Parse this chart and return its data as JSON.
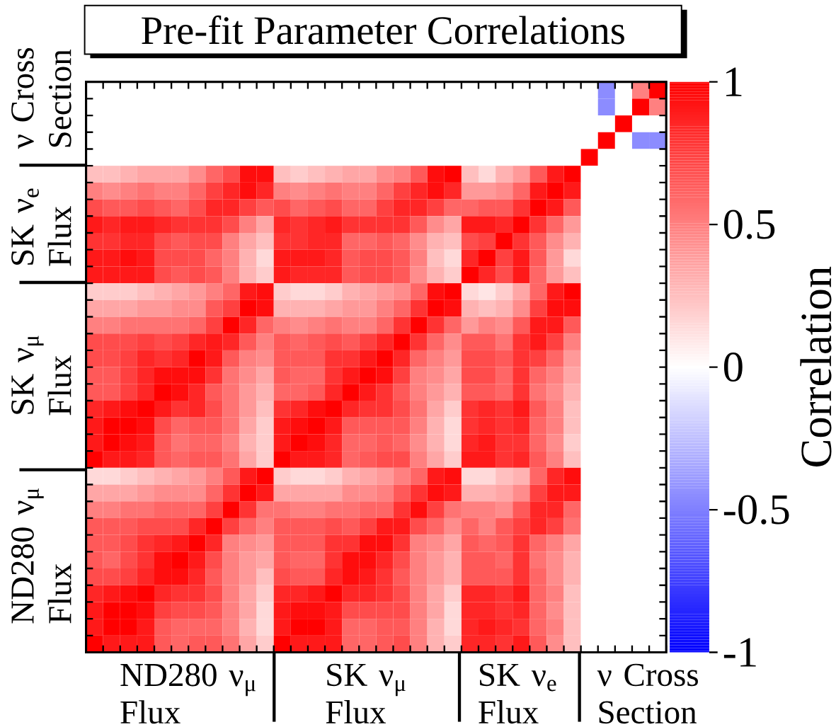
{
  "chart_data": {
    "type": "heatmap",
    "title": "Pre-fit Parameter Correlations",
    "clabel": "Correlation",
    "categories": [
      null,
      null,
      null,
      null,
      null,
      null,
      null,
      null,
      null,
      null,
      null,
      null,
      null,
      null,
      null,
      null,
      null,
      null,
      null,
      null,
      null,
      null,
      null,
      null,
      null,
      null,
      null,
      null,
      null,
      null,
      null,
      null,
      null,
      null
    ],
    "y_categories": [
      null,
      null,
      null,
      null,
      null,
      null,
      null,
      null,
      null,
      null,
      null,
      null,
      null,
      null,
      null,
      null,
      null,
      null,
      null,
      null,
      null,
      null,
      null,
      null,
      null,
      null,
      null,
      null,
      null,
      null,
      null,
      null,
      null,
      null
    ],
    "annotations": [
      "ND280 ν$_{μ}$ Flux",
      "SK ν$_{μ}$ Flux",
      "SK ν$_{e}$ Flux",
      "ν Cross Section",
      "ν Cross Section",
      "SK ν$_{e}$ Flux",
      "SK ν$_{μ}$ Flux",
      "ND280 ν$_{μ}$ Flux"
    ],
    "clim": [
      -1,
      1
    ],
    "cticks": [
      -1,
      -0.5,
      0,
      0.5,
      1
    ],
    "cells": [
      [
        0,
        0,
        0,
        0,
        0,
        0,
        0,
        0,
        0,
        0,
        0,
        0,
        0,
        0,
        0,
        0,
        0,
        0,
        0,
        0,
        0,
        0,
        0,
        0,
        0,
        0,
        0,
        0,
        0,
        0,
        -0.45,
        0,
        0.5,
        1
      ],
      [
        0,
        0,
        0,
        0,
        0,
        0,
        0,
        0,
        0,
        0,
        0,
        0,
        0,
        0,
        0,
        0,
        0,
        0,
        0,
        0,
        0,
        0,
        0,
        0,
        0,
        0,
        0,
        0,
        0,
        0,
        -0.45,
        0,
        1,
        0.5
      ],
      [
        0,
        0,
        0,
        0,
        0,
        0,
        0,
        0,
        0,
        0,
        0,
        0,
        0,
        0,
        0,
        0,
        0,
        0,
        0,
        0,
        0,
        0,
        0,
        0,
        0,
        0,
        0,
        0,
        0,
        0,
        0,
        1,
        0,
        0
      ],
      [
        0,
        0,
        0,
        0,
        0,
        0,
        0,
        0,
        0,
        0,
        0,
        0,
        0,
        0,
        0,
        0,
        0,
        0,
        0,
        0,
        0,
        0,
        0,
        0,
        0,
        0,
        0,
        0,
        0,
        0,
        1,
        0,
        -0.45,
        -0.45
      ],
      [
        0,
        0,
        0,
        0,
        0,
        0,
        0,
        0,
        0,
        0,
        0,
        0,
        0,
        0,
        0,
        0,
        0,
        0,
        0,
        0,
        0,
        0,
        0,
        0,
        0,
        0,
        0,
        0,
        0,
        1,
        0,
        0,
        0,
        0
      ],
      [
        0.25,
        0.25,
        0.3,
        0.35,
        0.35,
        0.35,
        0.45,
        0.6,
        0.7,
        0.95,
        0.95,
        0.25,
        0.2,
        0.25,
        0.3,
        0.35,
        0.35,
        0.45,
        0.5,
        0.65,
        0.95,
        1,
        0.25,
        0.15,
        0.3,
        0.4,
        0.65,
        0.9,
        1,
        0,
        0,
        0,
        0,
        0
      ],
      [
        0.5,
        0.45,
        0.5,
        0.55,
        0.5,
        0.5,
        0.6,
        0.75,
        0.85,
        0.95,
        0.85,
        0.5,
        0.45,
        0.5,
        0.55,
        0.5,
        0.5,
        0.6,
        0.75,
        0.85,
        0.95,
        0.85,
        0.4,
        0.4,
        0.45,
        0.6,
        0.9,
        1,
        0.9,
        0,
        0,
        0,
        0,
        0
      ],
      [
        0.7,
        0.65,
        0.65,
        0.7,
        0.65,
        0.6,
        0.7,
        0.85,
        0.85,
        0.75,
        0.65,
        0.7,
        0.6,
        0.65,
        0.7,
        0.6,
        0.6,
        0.75,
        0.85,
        0.85,
        0.75,
        0.6,
        0.6,
        0.65,
        0.65,
        0.8,
        1,
        0.9,
        0.65,
        0,
        0,
        0,
        0,
        0
      ],
      [
        0.9,
        0.85,
        0.9,
        0.9,
        0.85,
        0.8,
        0.8,
        0.8,
        0.7,
        0.5,
        0.35,
        0.85,
        0.8,
        0.85,
        0.9,
        0.8,
        0.8,
        0.8,
        0.8,
        0.65,
        0.45,
        0.35,
        0.9,
        0.9,
        0.85,
        1,
        0.8,
        0.6,
        0.4,
        0,
        0,
        0,
        0,
        0
      ],
      [
        0.8,
        0.8,
        0.85,
        0.85,
        0.7,
        0.65,
        0.7,
        0.7,
        0.5,
        0.35,
        0.25,
        0.8,
        0.8,
        0.85,
        0.85,
        0.6,
        0.6,
        0.65,
        0.6,
        0.45,
        0.3,
        0.25,
        0.7,
        0.75,
        1,
        0.8,
        0.65,
        0.45,
        0.3,
        0,
        0,
        0,
        0,
        0
      ],
      [
        0.9,
        0.9,
        0.95,
        0.9,
        0.7,
        0.7,
        0.7,
        0.6,
        0.5,
        0.3,
        0.15,
        0.9,
        0.9,
        0.9,
        0.85,
        0.65,
        0.7,
        0.7,
        0.65,
        0.5,
        0.25,
        0.15,
        0.85,
        1,
        0.75,
        0.9,
        0.65,
        0.4,
        0.15,
        0,
        0,
        0,
        0,
        0
      ],
      [
        0.9,
        0.9,
        0.9,
        0.9,
        0.7,
        0.65,
        0.7,
        0.65,
        0.5,
        0.3,
        0.2,
        0.9,
        0.85,
        0.85,
        0.85,
        0.65,
        0.7,
        0.7,
        0.65,
        0.45,
        0.3,
        0.2,
        1,
        0.85,
        0.7,
        0.9,
        0.6,
        0.4,
        0.25,
        0,
        0,
        0,
        0,
        0
      ],
      [
        0.2,
        0.2,
        0.2,
        0.25,
        0.3,
        0.35,
        0.4,
        0.5,
        0.6,
        0.9,
        0.95,
        0.2,
        0.15,
        0.15,
        0.2,
        0.3,
        0.35,
        0.4,
        0.45,
        0.6,
        0.95,
        1,
        0.15,
        0.1,
        0.2,
        0.35,
        0.6,
        0.9,
        1,
        0,
        0,
        0,
        0,
        0
      ],
      [
        0.35,
        0.35,
        0.35,
        0.4,
        0.4,
        0.45,
        0.45,
        0.65,
        0.75,
        1,
        0.95,
        0.3,
        0.3,
        0.3,
        0.35,
        0.4,
        0.4,
        0.5,
        0.6,
        0.8,
        1,
        0.95,
        0.3,
        0.25,
        0.3,
        0.45,
        0.75,
        0.95,
        0.95,
        0,
        0,
        0,
        0,
        0
      ],
      [
        0.5,
        0.5,
        0.55,
        0.55,
        0.55,
        0.55,
        0.6,
        0.75,
        1,
        0.85,
        0.6,
        0.5,
        0.45,
        0.5,
        0.55,
        0.5,
        0.5,
        0.6,
        0.8,
        1,
        0.8,
        0.6,
        0.4,
        0.5,
        0.45,
        0.65,
        0.9,
        0.9,
        0.65,
        0,
        0,
        0,
        0,
        0
      ],
      [
        0.7,
        0.7,
        0.7,
        0.75,
        0.7,
        0.75,
        0.85,
        0.9,
        0.85,
        0.65,
        0.5,
        0.65,
        0.6,
        0.65,
        0.7,
        0.65,
        0.75,
        0.85,
        1,
        0.8,
        0.6,
        0.45,
        0.65,
        0.65,
        0.55,
        0.8,
        0.9,
        0.75,
        0.5,
        0,
        0,
        0,
        0,
        0
      ],
      [
        0.7,
        0.7,
        0.75,
        0.85,
        0.8,
        0.85,
        1,
        0.9,
        0.65,
        0.5,
        0.45,
        0.65,
        0.65,
        0.65,
        0.8,
        0.8,
        0.9,
        1,
        0.85,
        0.6,
        0.5,
        0.4,
        0.7,
        0.7,
        0.65,
        0.8,
        0.75,
        0.6,
        0.4,
        0,
        0,
        0,
        0,
        0
      ],
      [
        0.65,
        0.65,
        0.75,
        0.85,
        0.95,
        0.95,
        0.95,
        0.8,
        0.55,
        0.45,
        0.35,
        0.65,
        0.6,
        0.6,
        0.8,
        0.9,
        1,
        0.95,
        0.75,
        0.5,
        0.45,
        0.35,
        0.7,
        0.7,
        0.6,
        0.8,
        0.6,
        0.5,
        0.35,
        0,
        0,
        0,
        0,
        0
      ],
      [
        0.65,
        0.65,
        0.75,
        0.85,
        1,
        0.95,
        0.85,
        0.65,
        0.55,
        0.4,
        0.3,
        0.6,
        0.6,
        0.65,
        0.85,
        1,
        0.9,
        0.8,
        0.65,
        0.5,
        0.4,
        0.3,
        0.65,
        0.65,
        0.6,
        0.8,
        0.55,
        0.45,
        0.3,
        0,
        0,
        0,
        0,
        0
      ],
      [
        0.85,
        0.9,
        0.95,
        1,
        0.9,
        0.8,
        0.85,
        0.7,
        0.55,
        0.4,
        0.25,
        0.8,
        0.85,
        0.95,
        1,
        0.85,
        0.8,
        0.8,
        0.7,
        0.55,
        0.35,
        0.2,
        0.8,
        0.85,
        0.8,
        0.9,
        0.65,
        0.5,
        0.25,
        0,
        0,
        0,
        0,
        0
      ],
      [
        0.9,
        1,
        1,
        0.95,
        0.7,
        0.6,
        0.65,
        0.65,
        0.55,
        0.35,
        0.2,
        0.9,
        0.95,
        1,
        0.9,
        0.65,
        0.65,
        0.65,
        0.65,
        0.5,
        0.3,
        0.15,
        0.8,
        0.85,
        0.8,
        0.85,
        0.6,
        0.5,
        0.25,
        0,
        0,
        0,
        0,
        0
      ],
      [
        0.9,
        1,
        0.95,
        0.9,
        0.65,
        0.55,
        0.6,
        0.6,
        0.5,
        0.3,
        0.2,
        0.9,
        1,
        0.95,
        0.85,
        0.6,
        0.6,
        0.65,
        0.6,
        0.45,
        0.3,
        0.15,
        0.85,
        0.9,
        0.8,
        0.8,
        0.6,
        0.45,
        0.2,
        0,
        0,
        0,
        0,
        0
      ],
      [
        1,
        0.9,
        0.9,
        0.85,
        0.65,
        0.6,
        0.65,
        0.65,
        0.55,
        0.35,
        0.2,
        1,
        0.9,
        0.9,
        0.85,
        0.6,
        0.65,
        0.7,
        0.7,
        0.5,
        0.35,
        0.2,
        0.9,
        0.9,
        0.8,
        0.85,
        0.65,
        0.5,
        0.25,
        0,
        0,
        0,
        0,
        0
      ],
      [
        0.15,
        0.15,
        0.2,
        0.25,
        0.3,
        0.35,
        0.4,
        0.5,
        0.65,
        0.9,
        1,
        0.2,
        0.15,
        0.15,
        0.2,
        0.3,
        0.35,
        0.4,
        0.5,
        0.6,
        0.9,
        0.95,
        0.15,
        0.15,
        0.25,
        0.3,
        0.6,
        0.85,
        0.95,
        0,
        0,
        0,
        0,
        0
      ],
      [
        0.35,
        0.35,
        0.35,
        0.4,
        0.45,
        0.45,
        0.45,
        0.6,
        0.8,
        1,
        0.9,
        0.35,
        0.35,
        0.35,
        0.35,
        0.45,
        0.45,
        0.5,
        0.65,
        0.8,
        0.95,
        0.9,
        0.3,
        0.3,
        0.35,
        0.45,
        0.75,
        0.9,
        0.9,
        0,
        0,
        0,
        0,
        0
      ],
      [
        0.5,
        0.5,
        0.55,
        0.55,
        0.6,
        0.6,
        0.6,
        0.75,
        1,
        0.8,
        0.55,
        0.55,
        0.5,
        0.5,
        0.55,
        0.55,
        0.6,
        0.6,
        0.8,
        0.95,
        0.75,
        0.55,
        0.5,
        0.5,
        0.45,
        0.65,
        0.85,
        0.85,
        0.6,
        0,
        0,
        0,
        0,
        0
      ],
      [
        0.65,
        0.65,
        0.65,
        0.7,
        0.7,
        0.7,
        0.85,
        1,
        0.75,
        0.6,
        0.5,
        0.65,
        0.65,
        0.65,
        0.7,
        0.65,
        0.75,
        0.9,
        0.9,
        0.7,
        0.6,
        0.45,
        0.6,
        0.5,
        0.65,
        0.75,
        0.85,
        0.75,
        0.55,
        0,
        0,
        0,
        0,
        0
      ],
      [
        0.65,
        0.65,
        0.7,
        0.8,
        0.85,
        0.9,
        1,
        0.85,
        0.5,
        0.45,
        0.4,
        0.65,
        0.65,
        0.65,
        0.8,
        0.8,
        0.95,
        0.95,
        0.8,
        0.5,
        0.45,
        0.35,
        0.65,
        0.6,
        0.65,
        0.8,
        0.6,
        0.5,
        0.35,
        0,
        0,
        0,
        0,
        0
      ],
      [
        0.65,
        0.6,
        0.7,
        0.8,
        0.95,
        1,
        0.9,
        0.7,
        0.5,
        0.4,
        0.35,
        0.65,
        0.6,
        0.6,
        0.8,
        0.95,
        0.95,
        0.85,
        0.7,
        0.5,
        0.4,
        0.3,
        0.65,
        0.65,
        0.6,
        0.8,
        0.55,
        0.45,
        0.3,
        0,
        0,
        0,
        0,
        0
      ],
      [
        0.7,
        0.7,
        0.75,
        0.85,
        0.95,
        0.95,
        0.85,
        0.65,
        0.5,
        0.4,
        0.25,
        0.7,
        0.65,
        0.65,
        0.85,
        0.95,
        0.9,
        0.8,
        0.65,
        0.5,
        0.4,
        0.3,
        0.65,
        0.65,
        0.65,
        0.8,
        0.6,
        0.45,
        0.3,
        0,
        0,
        0,
        0,
        0
      ],
      [
        0.85,
        0.9,
        0.95,
        1,
        0.85,
        0.8,
        0.8,
        0.7,
        0.5,
        0.35,
        0.2,
        0.85,
        0.85,
        0.9,
        1,
        0.85,
        0.85,
        0.8,
        0.7,
        0.5,
        0.35,
        0.2,
        0.85,
        0.85,
        0.8,
        0.9,
        0.6,
        0.5,
        0.25,
        0,
        0,
        0,
        0,
        0
      ],
      [
        0.9,
        1,
        1,
        0.95,
        0.75,
        0.7,
        0.7,
        0.65,
        0.5,
        0.35,
        0.15,
        0.9,
        0.95,
        0.95,
        0.9,
        0.7,
        0.7,
        0.7,
        0.7,
        0.5,
        0.35,
        0.15,
        0.85,
        0.85,
        0.8,
        0.85,
        0.6,
        0.45,
        0.25,
        0,
        0,
        0,
        0,
        0
      ],
      [
        0.9,
        1,
        1,
        0.9,
        0.65,
        0.6,
        0.6,
        0.6,
        0.5,
        0.3,
        0.15,
        0.9,
        1,
        1,
        0.9,
        0.6,
        0.6,
        0.65,
        0.65,
        0.5,
        0.3,
        0.15,
        0.85,
        0.9,
        0.85,
        0.8,
        0.6,
        0.5,
        0.25,
        0,
        0,
        0,
        0,
        0
      ],
      [
        1,
        0.9,
        0.9,
        0.9,
        0.65,
        0.6,
        0.65,
        0.65,
        0.55,
        0.35,
        0.2,
        1,
        0.9,
        0.9,
        0.9,
        0.6,
        0.6,
        0.65,
        0.7,
        0.5,
        0.3,
        0.2,
        0.85,
        0.85,
        0.8,
        0.9,
        0.65,
        0.45,
        0.25,
        0,
        0,
        0,
        0,
        0
      ]
    ]
  }
}
